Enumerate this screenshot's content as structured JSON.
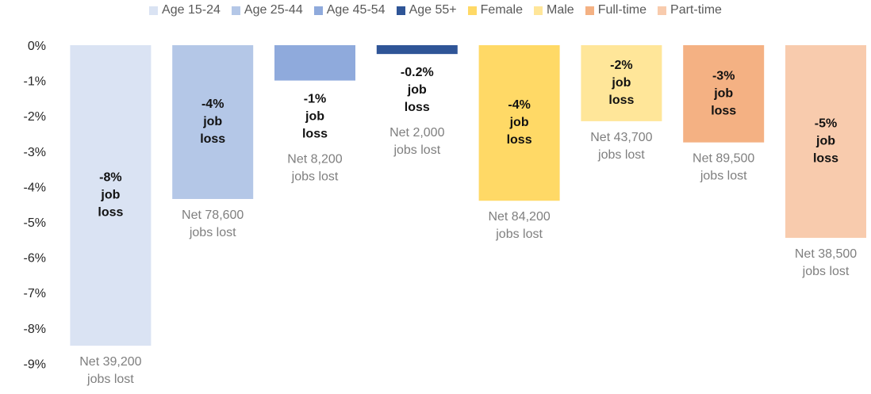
{
  "chart_data": {
    "type": "bar",
    "y_ticks": [
      "0%",
      "-1%",
      "-2%",
      "-3%",
      "-4%",
      "-5%",
      "-6%",
      "-7%",
      "-8%",
      "-9%"
    ],
    "ylim": [
      -9,
      0
    ],
    "grid": false,
    "legend_position": "top",
    "series": [
      {
        "name": "Age 15-24",
        "value": -8.5,
        "color": "#dae3f3",
        "label": [
          "-8%",
          "job",
          "loss"
        ],
        "net": [
          "Net 39,200",
          "jobs lost"
        ]
      },
      {
        "name": "Age 25-44",
        "value": -4.35,
        "color": "#b4c7e7",
        "label": [
          "-4%",
          "job",
          "loss"
        ],
        "net": [
          "Net 78,600",
          "jobs lost"
        ]
      },
      {
        "name": "Age 45-54",
        "value": -1.0,
        "color": "#8faadc",
        "label": [
          "-1%",
          "job",
          "loss"
        ],
        "net": [
          "Net 8,200",
          "jobs lost"
        ]
      },
      {
        "name": "Age 55+",
        "value": -0.25,
        "color": "#2f5597",
        "label": [
          "-0.2%",
          "job",
          "loss"
        ],
        "net": [
          "Net 2,000",
          "jobs lost"
        ]
      },
      {
        "name": "Female",
        "value": -4.4,
        "color": "#ffd966",
        "label": [
          "-4%",
          "job",
          "loss"
        ],
        "net": [
          "Net 84,200",
          "jobs lost"
        ]
      },
      {
        "name": "Male",
        "value": -2.15,
        "color": "#ffe699",
        "label": [
          "-2%",
          "job",
          "loss"
        ],
        "net": [
          "Net 43,700",
          "jobs lost"
        ]
      },
      {
        "name": "Full-time",
        "value": -2.75,
        "color": "#f4b183",
        "label": [
          "-3%",
          "job",
          "loss"
        ],
        "net": [
          "Net 89,500",
          "jobs lost"
        ]
      },
      {
        "name": "Part-time",
        "value": -5.45,
        "color": "#f8cbad",
        "label": [
          "-5%",
          "job",
          "loss"
        ],
        "net": [
          "Net 38,500",
          "jobs lost"
        ]
      }
    ]
  }
}
